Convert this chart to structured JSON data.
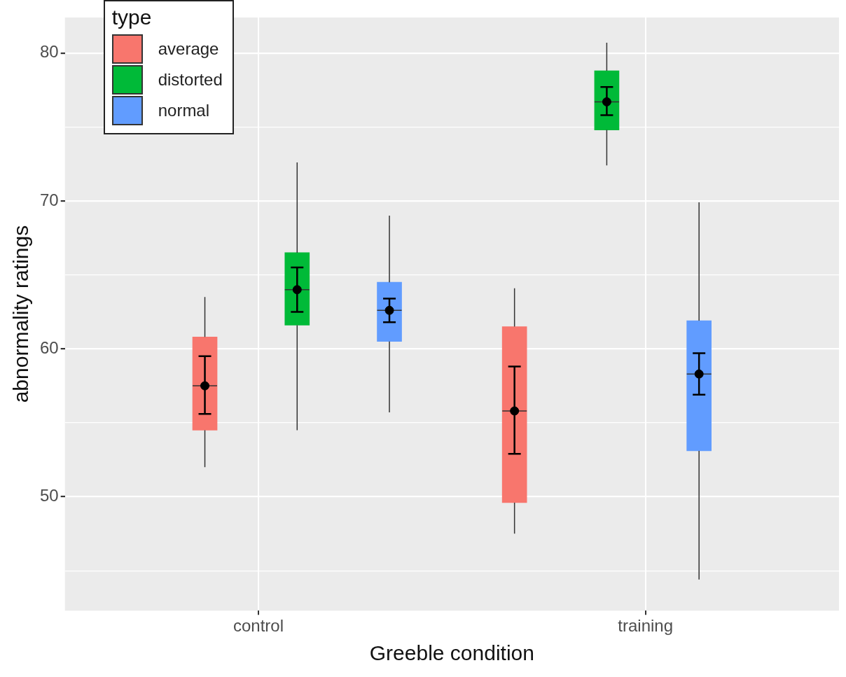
{
  "chart_data": {
    "type": "box",
    "xlabel": "Greeble condition",
    "ylabel": "abnormality ratings",
    "legend_title": "type",
    "legend": "top left",
    "grid": true,
    "categories": [
      "control",
      "training"
    ],
    "ylim": [
      42.3,
      82.4
    ],
    "yticks": [
      {
        "value": 45,
        "label": null
      },
      50,
      {
        "value": 55,
        "label": null
      },
      60,
      {
        "value": 65,
        "label": null
      },
      70,
      {
        "value": 75,
        "label": null
      },
      80
    ],
    "series": [
      {
        "name": "average",
        "color": "#f8766d",
        "boxes": [
          {
            "low": 52.0,
            "q1": 54.5,
            "median": 57.5,
            "q3": 60.8,
            "high": 63.5
          },
          {
            "low": 47.5,
            "q1": 49.6,
            "median": 55.8,
            "q3": 61.5,
            "high": 64.1
          }
        ]
      },
      {
        "name": "distorted",
        "color": "#00ba38",
        "boxes": [
          {
            "low": 54.5,
            "q1": 61.6,
            "median": 64.0,
            "q3": 66.5,
            "high": 72.6
          },
          {
            "low": 72.4,
            "q1": 74.8,
            "median": 76.7,
            "q3": 78.8,
            "high": 80.7
          }
        ]
      },
      {
        "name": "normal",
        "color": "#619cff",
        "boxes": [
          {
            "low": 55.7,
            "q1": 60.5,
            "median": 62.6,
            "q3": 64.5,
            "high": 69.0
          },
          {
            "low": 44.4,
            "q1": 53.1,
            "median": 58.3,
            "q3": 61.9,
            "high": 69.9
          }
        ]
      },
      {
        "type": "scatter",
        "color": "#000000",
        "x": [
          "control",
          "training"
        ],
        "values": [
          57.5,
          55.8
        ],
        "errors": [
          [
            55.6,
            59.5
          ],
          [
            52.9,
            58.8
          ]
        ]
      },
      {
        "type": "scatter",
        "color": "#000000",
        "x": [
          "control",
          "training"
        ],
        "values": [
          64.0,
          76.7
        ],
        "errors": [
          [
            62.5,
            65.5
          ],
          [
            75.8,
            77.7
          ]
        ]
      },
      {
        "type": "scatter",
        "color": "#000000",
        "x": [
          "control",
          "training"
        ],
        "values": [
          62.6,
          58.3
        ],
        "errors": [
          [
            61.8,
            63.4
          ],
          [
            56.9,
            59.7
          ]
        ]
      }
    ]
  }
}
